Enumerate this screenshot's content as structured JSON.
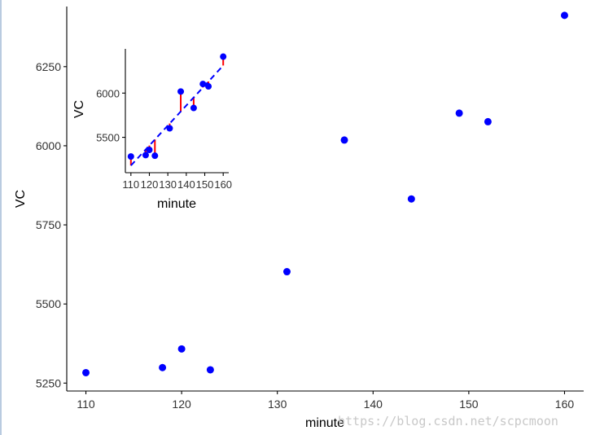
{
  "chart_data": [
    {
      "type": "scatter",
      "xlabel": "minute",
      "ylabel": "VC",
      "xlim": [
        108,
        162
      ],
      "ylim": [
        5225,
        6440
      ],
      "xticks": [
        110,
        120,
        130,
        140,
        150,
        160
      ],
      "yticks": [
        5250,
        5500,
        5750,
        6000,
        6250
      ],
      "grid": false,
      "x": [
        110,
        118,
        120,
        123,
        131,
        137,
        144,
        149,
        152,
        160
      ],
      "y": [
        5283,
        5299,
        5358,
        5292,
        5602,
        6018,
        5832,
        6103,
        6076,
        6412
      ],
      "point_color": "#0000ff"
    },
    {
      "type": "scatter",
      "xlabel": "minute",
      "ylabel": "VC",
      "xlim": [
        107,
        163
      ],
      "ylim": [
        5100,
        6500
      ],
      "xticks": [
        110,
        120,
        130,
        140,
        150,
        160
      ],
      "xtick_labels": [
        "110",
        "120",
        "130",
        "140",
        "150",
        "160"
      ],
      "yticks": [
        5500,
        6000
      ],
      "grid": false,
      "x": [
        110,
        118,
        120,
        123,
        131,
        137,
        144,
        149,
        152,
        160
      ],
      "y": [
        5283,
        5299,
        5358,
        5292,
        5602,
        6018,
        5832,
        6103,
        6076,
        6412
      ],
      "fit_line": {
        "style": "dashed",
        "color": "#0000ff",
        "x": [
          110,
          160
        ],
        "y": [
          5181,
          6312
        ]
      },
      "residual_color": "#ff0000",
      "point_color": "#0000ff"
    }
  ],
  "watermark": "https://blog.csdn.net/scpcmoon"
}
